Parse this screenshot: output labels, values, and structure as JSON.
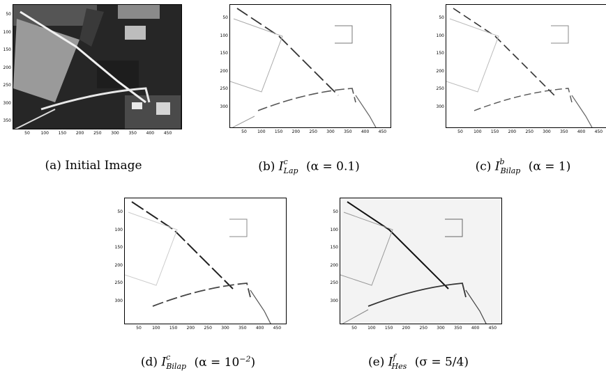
{
  "figures": [
    {
      "id": "a",
      "style": "dark",
      "yticks": [
        "50",
        "100",
        "150",
        "200",
        "250",
        "300",
        "350"
      ],
      "xticks": [
        "50",
        "100",
        "150",
        "200",
        "250",
        "300",
        "350",
        "400",
        "450"
      ],
      "caption_prefix": "(a)",
      "caption_text": "Initial Image"
    },
    {
      "id": "b",
      "style": "edges-light",
      "yticks": [
        "50",
        "100",
        "150",
        "200",
        "250",
        "300"
      ],
      "xticks": [
        "50",
        "100",
        "150",
        "200",
        "250",
        "300",
        "350",
        "400",
        "450"
      ],
      "caption_prefix": "(b)",
      "caption_sym": "I",
      "caption_sup": "c",
      "caption_sub": "Lap",
      "caption_param": "(α = 0.1)"
    },
    {
      "id": "c",
      "style": "edges-light",
      "yticks": [
        "50",
        "100",
        "150",
        "200",
        "250",
        "300"
      ],
      "xticks": [
        "50",
        "100",
        "150",
        "200",
        "250",
        "300",
        "350",
        "400",
        "450"
      ],
      "caption_prefix": "(c)",
      "caption_sym": "I",
      "caption_sup": "b",
      "caption_sub": "Bilap",
      "caption_param": "(α = 1)"
    },
    {
      "id": "d",
      "style": "edges-light",
      "yticks": [
        "50",
        "100",
        "150",
        "200",
        "250",
        "300"
      ],
      "xticks": [
        "50",
        "100",
        "150",
        "200",
        "250",
        "300",
        "350",
        "400",
        "450"
      ],
      "caption_prefix": "(d)",
      "caption_sym": "I",
      "caption_sup": "c",
      "caption_sub": "Bilap",
      "caption_param": "(α = 10",
      "caption_param_exp": "−2",
      "caption_param_end": ")"
    },
    {
      "id": "e",
      "style": "edges-textured",
      "yticks": [
        "50",
        "100",
        "150",
        "200",
        "250",
        "300"
      ],
      "xticks": [
        "50",
        "100",
        "150",
        "200",
        "250",
        "300",
        "350",
        "400",
        "450"
      ],
      "caption_prefix": "(e)",
      "caption_sym": "I",
      "caption_sup": "f",
      "caption_sub": "Hes",
      "caption_param": "(σ = 5/4)"
    }
  ]
}
